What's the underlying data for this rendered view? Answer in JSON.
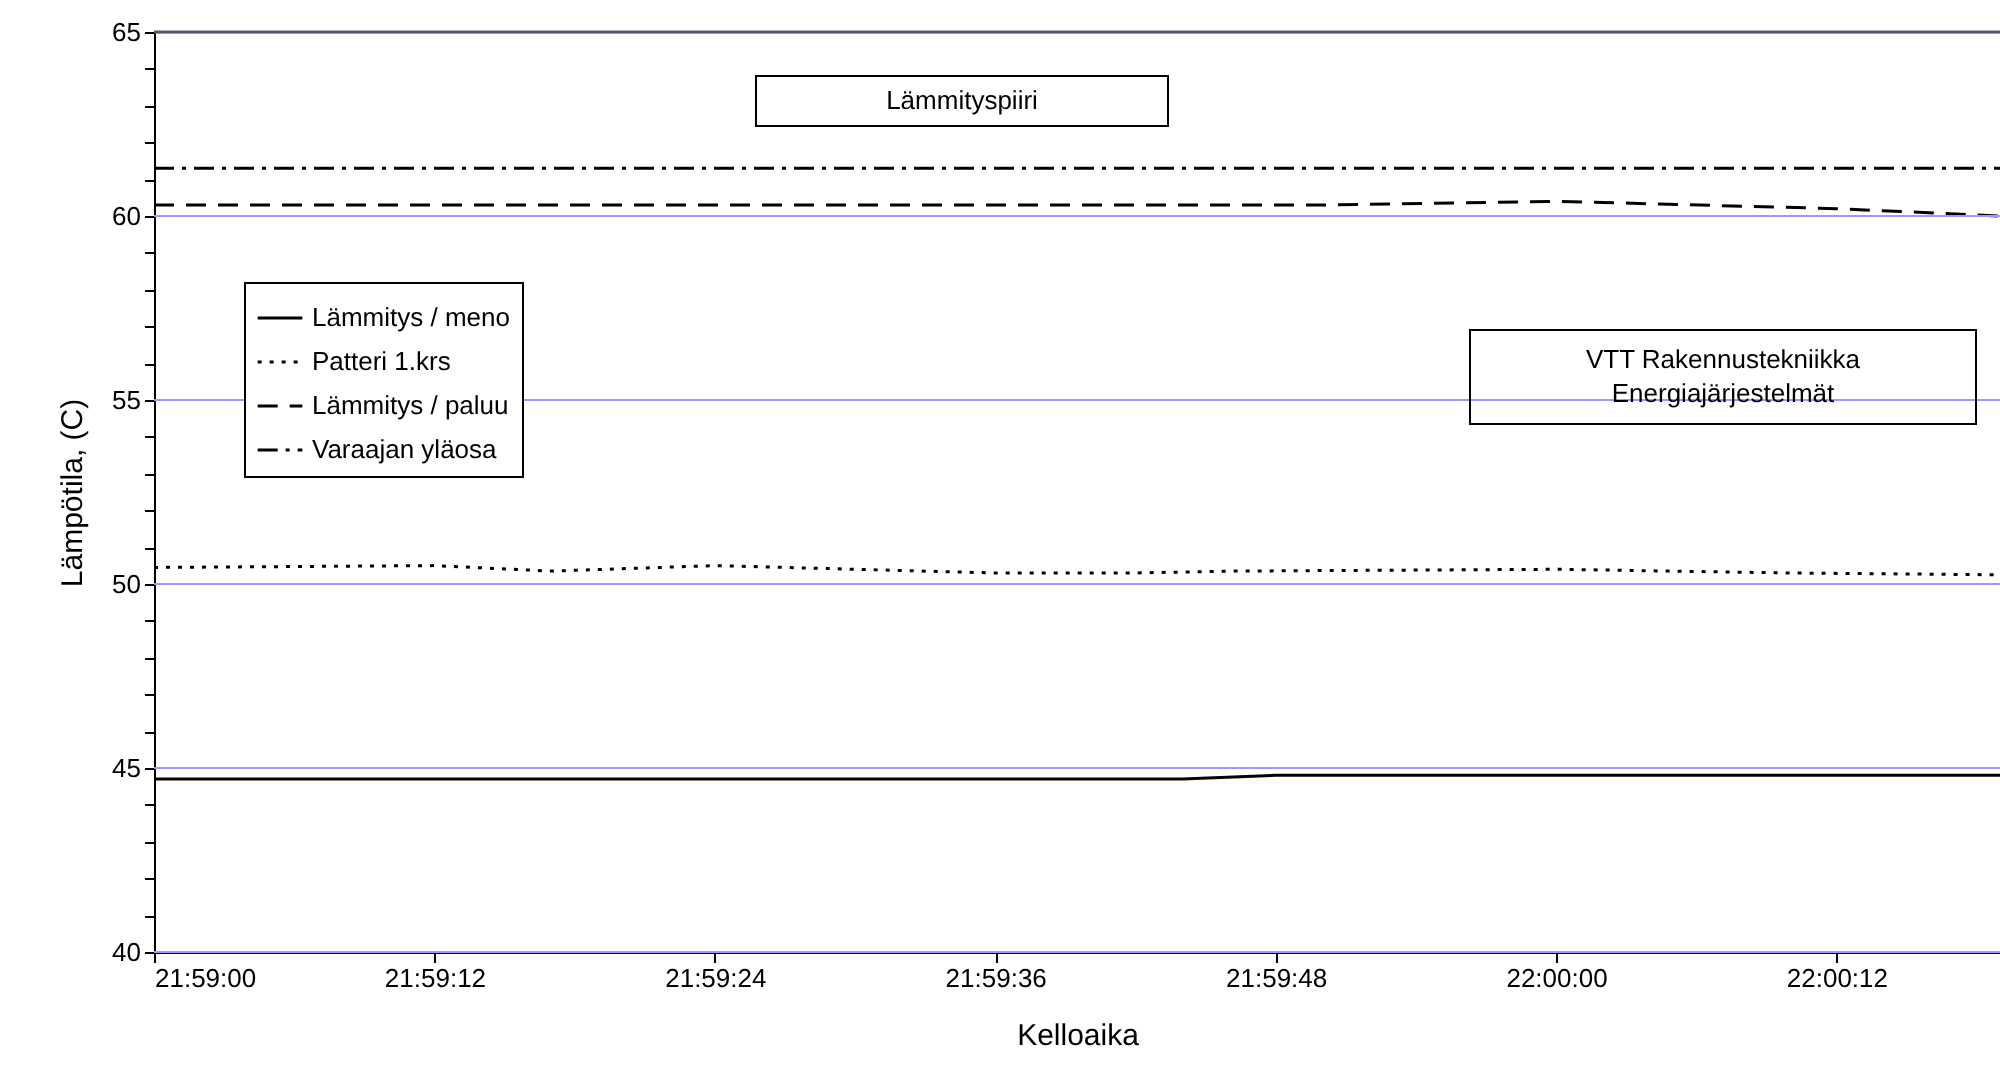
{
  "chart_data": {
    "type": "line",
    "xlabel": "Kelloaika",
    "ylabel": "Lämpötila, (C)",
    "annotations": [
      "Lämmityspiiri",
      "VTT Rakennustekniikka\nEnergiajärjestelmät"
    ],
    "series": [
      {
        "name": "Lämmitys / meno",
        "color": "#000000",
        "line_style": "solid",
        "x": [
          21.983333,
          21.995556,
          21.996667,
          22.005278
        ],
        "values": [
          44.7,
          44.7,
          44.8,
          44.8
        ]
      },
      {
        "name": "Patteri 1.krs",
        "color": "#000000",
        "line_style": "dotted",
        "x": [
          21.983333,
          21.986667,
          21.988056,
          21.99,
          21.991667,
          21.993333,
          21.995,
          21.996111,
          22.0,
          22.002778,
          22.005278
        ],
        "values": [
          50.45,
          50.5,
          50.35,
          50.5,
          50.4,
          50.3,
          50.3,
          50.35,
          50.4,
          50.3,
          50.25
        ]
      },
      {
        "name": "Lämmitys / paluu",
        "color": "#000000",
        "line_style": "dashed",
        "x": [
          21.983333,
          21.997222,
          22.0,
          22.003333,
          22.005278
        ],
        "values": [
          60.3,
          60.3,
          60.4,
          60.2,
          60.0
        ]
      },
      {
        "name": "Varaajan yläosa",
        "color": "#000000",
        "line_style": "dashdot",
        "x": [
          21.983333,
          22.005278
        ],
        "values": [
          61.3,
          61.3
        ]
      }
    ],
    "xlim": [
      21.983333,
      22.005278
    ],
    "xticks": [
      {
        "value": 21.983333,
        "label": "21:59:00"
      },
      {
        "value": 21.986667,
        "label": "21:59:12"
      },
      {
        "value": 21.99,
        "label": "21:59:24"
      },
      {
        "value": 21.993333,
        "label": "21:59:36"
      },
      {
        "value": 21.996667,
        "label": "21:59:48"
      },
      {
        "value": 22.0,
        "label": "22:00:00"
      },
      {
        "value": 22.003333,
        "label": "22:00:12"
      }
    ],
    "ylim": [
      40,
      65
    ],
    "yticks": [
      40,
      {
        "value": 41,
        "label": null
      },
      {
        "value": 42,
        "label": null
      },
      {
        "value": 43,
        "label": null
      },
      {
        "value": 44,
        "label": null
      },
      45,
      {
        "value": 46,
        "label": null
      },
      {
        "value": 47,
        "label": null
      },
      {
        "value": 48,
        "label": null
      },
      {
        "value": 49,
        "label": null
      },
      50,
      {
        "value": 51,
        "label": null
      },
      {
        "value": 52,
        "label": null
      },
      {
        "value": 53,
        "label": null
      },
      {
        "value": 54,
        "label": null
      },
      55,
      {
        "value": 56,
        "label": null
      },
      {
        "value": 57,
        "label": null
      },
      {
        "value": 58,
        "label": null
      },
      {
        "value": 59,
        "label": null
      },
      60,
      {
        "value": 61,
        "label": null
      },
      {
        "value": 62,
        "label": null
      },
      {
        "value": 63,
        "label": null
      },
      {
        "value": 64,
        "label": null
      },
      65
    ],
    "grid": "y",
    "legend": "left"
  }
}
